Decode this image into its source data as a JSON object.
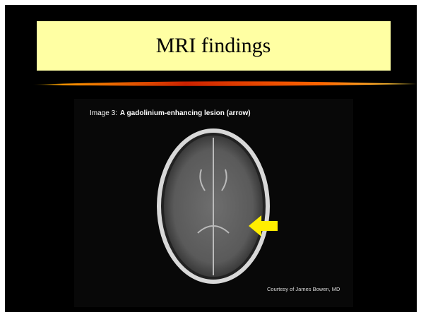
{
  "slide": {
    "title": "MRI findings",
    "image": {
      "caption_prefix": "Image 3:",
      "caption": "A gadolinium-enhancing lesion (arrow)",
      "credit": "Courtesy of James Bowen, MD"
    }
  }
}
